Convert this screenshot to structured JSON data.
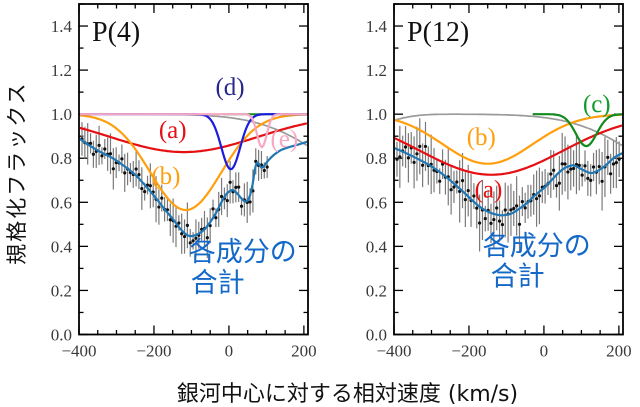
{
  "figure": {
    "y_axis_label": "規格化フラックス",
    "x_axis_label": "銀河中心に対する相対速度 (km/s)",
    "background": "#ffffff",
    "frame_color": "#000000",
    "tick_label_color": "#3a3a3a"
  },
  "axes": {
    "xlim": [
      -400,
      211
    ],
    "ylim": [
      0,
      1.5
    ],
    "x_major_ticks": [
      -400,
      -200,
      0,
      200
    ],
    "x_tick_labels": [
      "−400",
      "−200",
      "0",
      "200"
    ],
    "x_minor_step": 50,
    "y_major_ticks": [
      0,
      0.2,
      0.4,
      0.6,
      0.8,
      1.0,
      1.2,
      1.4
    ],
    "y_tick_labels": [
      "0.0",
      "0.2",
      "0.4",
      "0.6",
      "0.8",
      "1.0",
      "1.2",
      "1.4"
    ],
    "y_minor_step": 0.1
  },
  "chart_data": [
    {
      "type": "line",
      "title": "P(4)",
      "title_color": "#111111",
      "components": [
        {
          "id": "blend-gray",
          "color": "#9a9a9a",
          "width": 1.7,
          "gaussians": [
            {
              "depth": 0.35,
              "center": 450,
              "sigma": 180
            }
          ]
        },
        {
          "id": "a",
          "color": "#e60f13",
          "width": 2.2,
          "gaussians": [
            {
              "depth": 0.172,
              "center": -120,
              "sigma": 195
            }
          ]
        },
        {
          "id": "b",
          "color": "#ff9f0e",
          "width": 2.2,
          "gaussians": [
            {
              "depth": 0.435,
              "center": -115,
              "sigma": 95
            }
          ]
        },
        {
          "id": "continuum-green",
          "color": "#128a1e",
          "width": 2.0,
          "x_from": -15,
          "gaussians": []
        },
        {
          "id": "d",
          "color": "#1c1ce0",
          "width": 2.2,
          "gaussians": [
            {
              "depth": 0.25,
              "center": 5,
              "sigma": 25
            }
          ]
        },
        {
          "id": "e",
          "color": "#f7a8c4",
          "width": 2.2,
          "gaussians": [
            {
              "depth": 0.15,
              "center": 88,
              "sigma": 13
            }
          ]
        }
      ],
      "sum": {
        "color": "#1f77b4",
        "width": 2.2,
        "points": [
          [
            -400,
            0.89
          ],
          [
            -370,
            0.856
          ],
          [
            -340,
            0.826
          ],
          [
            -310,
            0.8
          ],
          [
            -280,
            0.765
          ],
          [
            -250,
            0.725
          ],
          [
            -220,
            0.67
          ],
          [
            -195,
            0.62
          ],
          [
            -170,
            0.565
          ],
          [
            -150,
            0.525
          ],
          [
            -130,
            0.48
          ],
          [
            -115,
            0.455
          ],
          [
            -105,
            0.447
          ],
          [
            -95,
            0.448
          ],
          [
            -80,
            0.458
          ],
          [
            -65,
            0.478
          ],
          [
            -50,
            0.51
          ],
          [
            -35,
            0.55
          ],
          [
            -20,
            0.6
          ],
          [
            -8,
            0.635
          ],
          [
            3,
            0.652
          ],
          [
            12,
            0.655
          ],
          [
            22,
            0.64
          ],
          [
            35,
            0.615
          ],
          [
            45,
            0.603
          ],
          [
            55,
            0.625
          ],
          [
            63,
            0.68
          ],
          [
            70,
            0.755
          ],
          [
            76,
            0.78
          ],
          [
            82,
            0.768
          ],
          [
            88,
            0.757
          ],
          [
            95,
            0.768
          ],
          [
            105,
            0.79
          ],
          [
            120,
            0.815
          ],
          [
            140,
            0.838
          ],
          [
            160,
            0.85
          ],
          [
            185,
            0.862
          ],
          [
            211,
            0.876
          ]
        ]
      },
      "data_points": {
        "x_start": -392,
        "x_end": 106,
        "x_step": 7.6,
        "jitter": 0.035,
        "err_min": 0.035,
        "err_max": 0.105,
        "seed": 11,
        "dot_color": "#101010",
        "bar_color": "#7a7a7a"
      },
      "annotations": [
        {
          "text": "(a)",
          "x": -150,
          "y": 0.925,
          "color": "#e60f13",
          "size": 25,
          "font": "serif"
        },
        {
          "text": "(b)",
          "x": -168,
          "y": 0.718,
          "color": "#ff9f0e",
          "size": 25,
          "font": "serif"
        },
        {
          "text": "(d)",
          "x": 3,
          "y": 1.12,
          "color": "#26268c",
          "size": 25,
          "font": "serif"
        },
        {
          "text": "(e)",
          "x": 148,
          "y": 0.885,
          "color": "#f7a8c4",
          "size": 25,
          "font": "serif"
        },
        {
          "text": "各成分の",
          "x": 37,
          "y": 0.372,
          "color": "#1468c8",
          "size": 27,
          "font": "sans"
        },
        {
          "text": "合計",
          "x": -30,
          "y": 0.232,
          "color": "#1468c8",
          "size": 27,
          "font": "sans"
        }
      ]
    },
    {
      "type": "line",
      "title": "P(12)",
      "title_color": "#111111",
      "components": [
        {
          "id": "blend-gray",
          "color": "#9a9a9a",
          "width": 1.7,
          "gaussians": [
            {
              "depth": 0.35,
              "center": 450,
              "sigma": 180
            },
            {
              "depth": 0.05,
              "center": -470,
              "sigma": 65
            }
          ]
        },
        {
          "id": "a",
          "color": "#e60f13",
          "width": 2.2,
          "gaussians": [
            {
              "depth": 0.275,
              "center": -140,
              "sigma": 190
            }
          ]
        },
        {
          "id": "b",
          "color": "#ff9f0e",
          "width": 2.2,
          "gaussians": [
            {
              "depth": 0.225,
              "center": -150,
              "sigma": 120
            }
          ]
        },
        {
          "id": "c",
          "color": "#128a1e",
          "width": 2.2,
          "x_from": -30,
          "gaussians": [
            {
              "depth": 0.145,
              "center": 113,
              "sigma": 28
            }
          ]
        }
      ],
      "sum": {
        "color": "#1f77b4",
        "width": 2.2,
        "points": [
          [
            -400,
            0.847
          ],
          [
            -370,
            0.825
          ],
          [
            -340,
            0.8
          ],
          [
            -310,
            0.773
          ],
          [
            -280,
            0.74
          ],
          [
            -250,
            0.7
          ],
          [
            -220,
            0.655
          ],
          [
            -195,
            0.615
          ],
          [
            -175,
            0.585
          ],
          [
            -155,
            0.562
          ],
          [
            -135,
            0.548
          ],
          [
            -115,
            0.541
          ],
          [
            -100,
            0.543
          ],
          [
            -85,
            0.55
          ],
          [
            -65,
            0.572
          ],
          [
            -45,
            0.597
          ],
          [
            -25,
            0.63
          ],
          [
            0,
            0.665
          ],
          [
            20,
            0.7
          ],
          [
            40,
            0.735
          ],
          [
            55,
            0.755
          ],
          [
            70,
            0.765
          ],
          [
            80,
            0.768
          ],
          [
            95,
            0.755
          ],
          [
            110,
            0.742
          ],
          [
            125,
            0.733
          ],
          [
            140,
            0.74
          ],
          [
            155,
            0.755
          ],
          [
            170,
            0.775
          ],
          [
            185,
            0.8
          ],
          [
            200,
            0.815
          ],
          [
            211,
            0.824
          ]
        ]
      },
      "data_points": {
        "x_start": -392,
        "x_end": 208,
        "x_step": 7.6,
        "jitter": 0.05,
        "err_min": 0.05,
        "err_max": 0.145,
        "seed": 23,
        "dot_color": "#101010",
        "bar_color": "#7a7a7a"
      },
      "annotations": [
        {
          "text": "(b)",
          "x": -167,
          "y": 0.895,
          "color": "#ff9f0e",
          "size": 25,
          "font": "serif"
        },
        {
          "text": "(a)",
          "x": -148,
          "y": 0.655,
          "color": "#e60f13",
          "size": 25,
          "font": "serif"
        },
        {
          "text": "(c)",
          "x": 141,
          "y": 1.045,
          "color": "#0f9c2c",
          "size": 25,
          "font": "serif"
        },
        {
          "text": "各成分の",
          "x": -19,
          "y": 0.4,
          "color": "#1468c8",
          "size": 27,
          "font": "sans"
        },
        {
          "text": "合計",
          "x": -70,
          "y": 0.26,
          "color": "#1468c8",
          "size": 27,
          "font": "sans"
        }
      ]
    }
  ]
}
